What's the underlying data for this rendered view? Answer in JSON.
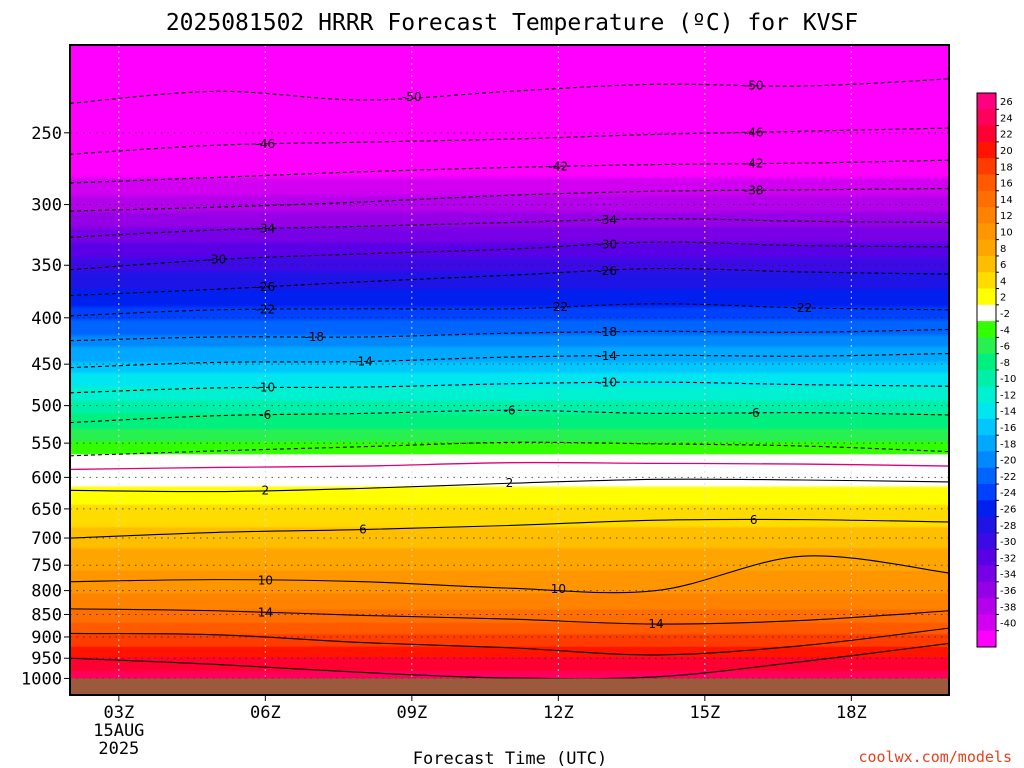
{
  "chart_data": {
    "type": "heatmap",
    "title": "2025081502 HRRR Forecast Temperature (ºC) for KVSF",
    "xlabel": "Forecast Time (UTC)",
    "ylabel": "",
    "credit": "coolwx.com/models",
    "x_ticks": [
      {
        "label": "03Z",
        "hour": 3,
        "sub": [
          "15AUG",
          "2025"
        ]
      },
      {
        "label": "06Z",
        "hour": 6,
        "sub": []
      },
      {
        "label": "09Z",
        "hour": 9,
        "sub": []
      },
      {
        "label": "12Z",
        "hour": 12,
        "sub": []
      },
      {
        "label": "15Z",
        "hour": 15,
        "sub": []
      },
      {
        "label": "18Z",
        "hour": 18,
        "sub": []
      }
    ],
    "xlim_hours": [
      2,
      20
    ],
    "y_ticks": [
      "250",
      "300",
      "350",
      "400",
      "450",
      "500",
      "550",
      "600",
      "650",
      "700",
      "750",
      "800",
      "850",
      "900",
      "950",
      "1000"
    ],
    "y_tick_values": [
      250,
      300,
      350,
      400,
      450,
      500,
      550,
      600,
      650,
      700,
      750,
      800,
      850,
      900,
      950,
      1000
    ],
    "ylim_hpa": [
      200,
      1043
    ],
    "y_scale": "log",
    "ground_pressure_hpa": 1000,
    "ground_color": "#9c5a3c",
    "colorbar_labels": [
      "26",
      "24",
      "22",
      "20",
      "18",
      "16",
      "14",
      "12",
      "10",
      "8",
      "6",
      "4",
      "2",
      "-2",
      "-4",
      "-6",
      "-8",
      "-10",
      "-12",
      "-14",
      "-16",
      "-18",
      "-20",
      "-22",
      "-24",
      "-26",
      "-28",
      "-30",
      "-32",
      "-34",
      "-36",
      "-38",
      "-40"
    ],
    "colorbar_colors": [
      "#ff007f",
      "#ff005a",
      "#ff0032",
      "#ff1400",
      "#ff3c00",
      "#ff5a00",
      "#ff6e00",
      "#ff8200",
      "#ff9600",
      "#ffa500",
      "#ffbe00",
      "#ffdc00",
      "#ffff00",
      "#ffffff",
      "#32ff00",
      "#28f050",
      "#00f07f",
      "#00f0aa",
      "#00f0d2",
      "#00e6f0",
      "#00c8ff",
      "#00a8ff",
      "#0088ff",
      "#0064ff",
      "#0040ff",
      "#0020f0",
      "#1e14e6",
      "#3c0ae6",
      "#5a00e6",
      "#7800e6",
      "#9600e6",
      "#b400eb",
      "#d200f0",
      "#ff00ff"
    ],
    "temperature_profile": [
      {
        "p": 200,
        "t": -62
      },
      {
        "p": 250,
        "t": -46
      },
      {
        "p": 300,
        "t": -37
      },
      {
        "p": 350,
        "t": -29
      },
      {
        "p": 400,
        "t": -22.5
      },
      {
        "p": 450,
        "t": -15.5
      },
      {
        "p": 500,
        "t": -9
      },
      {
        "p": 550,
        "t": -4
      },
      {
        "p": 570,
        "t": -1.6
      },
      {
        "p": 600,
        "t": 1
      },
      {
        "p": 650,
        "t": 4.5
      },
      {
        "p": 700,
        "t": 7
      },
      {
        "p": 750,
        "t": 9.5
      },
      {
        "p": 800,
        "t": 11.5
      },
      {
        "p": 850,
        "t": 14.5
      },
      {
        "p": 900,
        "t": 18.5
      },
      {
        "p": 950,
        "t": 22
      },
      {
        "p": 1000,
        "t": 25
      }
    ],
    "contours": [
      {
        "label": "-50",
        "style": "dashed",
        "hpa": [
          232,
          225,
          230,
          225,
          221,
          222,
          218
        ],
        "labels_at_hours": [
          9,
          16
        ]
      },
      {
        "label": "-46",
        "style": "dashed",
        "hpa": [
          264,
          258,
          256,
          254,
          251,
          249,
          247
        ],
        "labels_at_hours": [
          6,
          16
        ]
      },
      {
        "label": "-42",
        "style": "dashed",
        "hpa": [
          284,
          280,
          276,
          273,
          271,
          270,
          268
        ],
        "labels_at_hours": [
          12,
          16
        ]
      },
      {
        "label": "-38",
        "style": "dashed",
        "hpa": [
          305,
          302,
          298,
          293,
          290,
          289,
          288
        ],
        "labels_at_hours": [
          16
        ]
      },
      {
        "label": "-34",
        "style": "dashed",
        "hpa": [
          326,
          320,
          317,
          314,
          311,
          313,
          314
        ],
        "labels_at_hours": [
          6,
          13
        ]
      },
      {
        "label": "-30",
        "style": "dashed",
        "hpa": [
          354,
          345,
          340,
          336,
          330,
          333,
          334
        ],
        "labels_at_hours": [
          5,
          13
        ]
      },
      {
        "label": "-26",
        "style": "dashed",
        "hpa": [
          378,
          372,
          365,
          359,
          353,
          356,
          358
        ],
        "labels_at_hours": [
          6,
          13
        ]
      },
      {
        "label": "-22",
        "style": "dashed",
        "hpa": [
          398,
          392,
          391,
          391,
          386,
          390,
          392
        ],
        "labels_at_hours": [
          6,
          12,
          17
        ]
      },
      {
        "label": "-18",
        "style": "dashed",
        "hpa": [
          424,
          420,
          420,
          416,
          414,
          415,
          412
        ],
        "labels_at_hours": [
          7,
          13
        ]
      },
      {
        "label": "-14",
        "style": "dashed",
        "hpa": [
          454,
          448,
          447,
          442,
          440,
          441,
          438
        ],
        "labels_at_hours": [
          8,
          13
        ]
      },
      {
        "label": "-10",
        "style": "dashed",
        "hpa": [
          484,
          478,
          477,
          473,
          471,
          474,
          476
        ],
        "labels_at_hours": [
          6,
          13
        ]
      },
      {
        "label": "-6",
        "style": "dashed",
        "hpa": [
          522,
          513,
          510,
          506,
          510,
          509,
          512
        ],
        "labels_at_hours": [
          6,
          11,
          16
        ]
      },
      {
        "label": "-2",
        "style": "dashed",
        "hpa": [
          568,
          561,
          555,
          549,
          551,
          554,
          562
        ],
        "labels_at_hours": []
      },
      {
        "label": "0",
        "style": "magenta",
        "hpa": [
          588,
          585,
          583,
          578,
          579,
          580,
          583
        ],
        "labels_at_hours": []
      },
      {
        "label": "2",
        "style": "solid",
        "hpa": [
          620,
          622,
          617,
          609,
          603,
          604,
          607
        ],
        "labels_at_hours": [
          6,
          11
        ]
      },
      {
        "label": "6",
        "style": "solid",
        "hpa": [
          700,
          690,
          685,
          678,
          669,
          668,
          672
        ],
        "labels_at_hours": [
          8,
          16
        ]
      },
      {
        "label": "10",
        "style": "solid",
        "hpa": [
          782,
          778,
          782,
          795,
          800,
          733,
          765
        ],
        "labels_at_hours": [
          6,
          12
        ]
      },
      {
        "label": "14",
        "style": "solid",
        "hpa": [
          838,
          842,
          852,
          860,
          871,
          863,
          842
        ],
        "labels_at_hours": [
          6,
          14
        ]
      },
      {
        "label": "18",
        "style": "solid",
        "hpa": [
          892,
          895,
          913,
          925,
          942,
          920,
          880
        ],
        "labels_at_hours": []
      },
      {
        "label": "22",
        "style": "solid",
        "hpa": [
          950,
          965,
          985,
          999,
          996,
          958,
          915
        ],
        "labels_at_hours": []
      }
    ],
    "contour_hours": [
      2,
      5,
      8,
      11,
      14,
      17,
      20
    ]
  }
}
